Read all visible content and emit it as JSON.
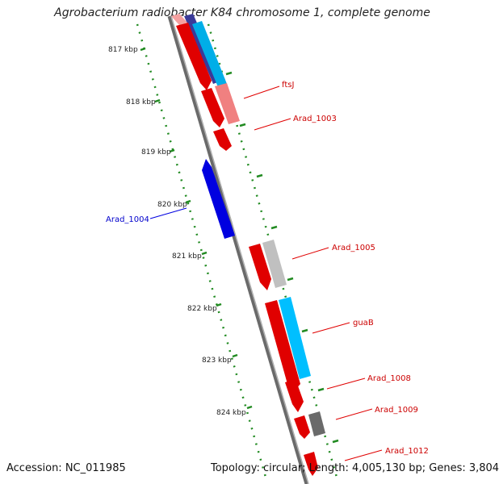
{
  "title": "Agrobacterium radiobacter K84 chromosome 1, complete genome",
  "footer": {
    "accession": "Accession: NC_011985",
    "summary": "Topology: circular; Length: 4,005,130 bp; Genes: 3,804"
  },
  "ruler": {
    "ticks": [
      {
        "label": "817 kbp"
      },
      {
        "label": "818 kbp"
      },
      {
        "label": "819 kbp"
      },
      {
        "label": "820 kbp"
      },
      {
        "label": "821 kbp"
      },
      {
        "label": "822 kbp"
      },
      {
        "label": "823 kbp"
      },
      {
        "label": "824 kbp"
      }
    ]
  },
  "genes": [
    {
      "name": "ftsJ",
      "color": "#cc0000"
    },
    {
      "name": "Arad_1003",
      "color": "#cc0000"
    },
    {
      "name": "Arad_1004",
      "color": "#0000cc"
    },
    {
      "name": "Arad_1005",
      "color": "#cc0000"
    },
    {
      "name": "guaB",
      "color": "#cc0000"
    },
    {
      "name": "Arad_1008",
      "color": "#cc0000"
    },
    {
      "name": "Arad_1009",
      "color": "#cc0000"
    },
    {
      "name": "Arad_1012",
      "color": "#cc0000"
    }
  ],
  "colors": {
    "backbone": "#808080",
    "cds": "#ff0000",
    "cds_reverse": "#0000ff",
    "rna": "#00bfff",
    "pseudo_light": "#f08080",
    "gray_feature": "#bdbdbd",
    "dark_feature": "#6a6a6a",
    "tick": "#228b22"
  }
}
